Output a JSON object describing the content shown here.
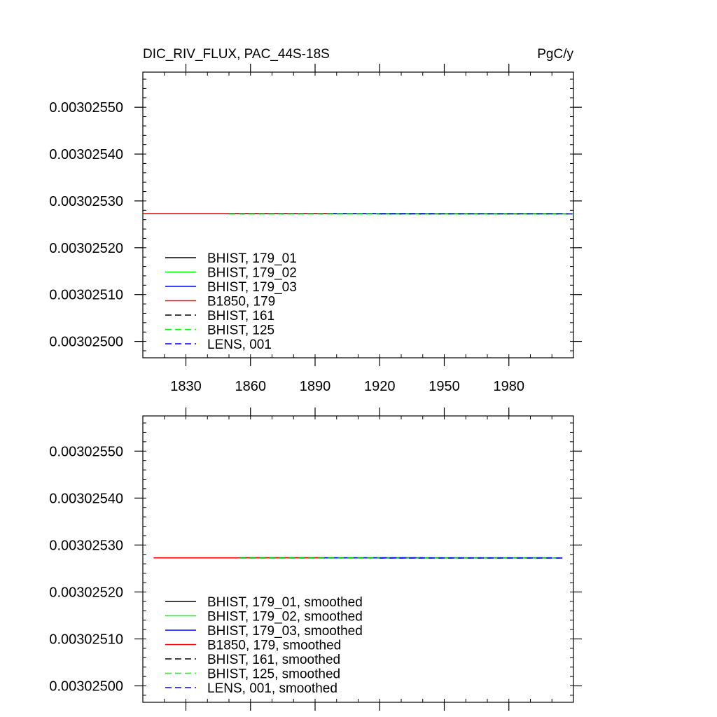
{
  "chart_data": [
    {
      "type": "line",
      "title": "DIC_RIV_FLUX, PAC_44S-18S",
      "units": "PgC/y",
      "xlabel": "",
      "ylabel": "",
      "xlim": [
        1810,
        2010
      ],
      "ylim": [
        0.003024965,
        0.003025575
      ],
      "xticks": [
        "1830",
        "1860",
        "1890",
        "1920",
        "1950",
        "1980"
      ],
      "yticks": [
        "0.00302500",
        "0.00302510",
        "0.00302520",
        "0.00302530",
        "0.00302540",
        "0.00302550"
      ],
      "legend_position": "lower-left",
      "grid": false,
      "series": [
        {
          "name": "BHIST, 179_01",
          "color": "#000000",
          "dash": "solid",
          "x": [
            1850,
            2005
          ],
          "y": [
            0.0030252727,
            0.0030252727
          ]
        },
        {
          "name": "BHIST, 179_02",
          "color": "#00ff00",
          "dash": "solid",
          "x": [
            1850,
            2005
          ],
          "y": [
            0.0030252727,
            0.0030252727
          ]
        },
        {
          "name": "BHIST, 179_03",
          "color": "#0000ff",
          "dash": "solid",
          "x": [
            1850,
            1945
          ],
          "y": [
            0.0030252727,
            0.0030252727
          ]
        },
        {
          "name": "B1850, 179",
          "color": "#ff0000",
          "dash": "solid",
          "x": [
            1810,
            1897
          ],
          "y": [
            0.0030252727,
            0.0030252727
          ]
        },
        {
          "name": "BHIST, 161",
          "color": "#000000",
          "dash": "dashed",
          "x": [
            1850,
            2010
          ],
          "y": [
            0.0030252725,
            0.0030252725
          ]
        },
        {
          "name": "BHIST, 125",
          "color": "#00ff00",
          "dash": "dashed",
          "x": [
            1850,
            2010
          ],
          "y": [
            0.0030252722,
            0.0030252722
          ]
        },
        {
          "name": "LENS, 001",
          "color": "#0000ff",
          "dash": "dashed",
          "x": [
            1920,
            2010
          ],
          "y": [
            0.0030252724,
            0.0030252724
          ]
        }
      ]
    },
    {
      "type": "line",
      "title": "",
      "xlabel": "",
      "ylabel": "",
      "xlim": [
        1810,
        2010
      ],
      "ylim": [
        0.003024965,
        0.003025575
      ],
      "xticks": [],
      "yticks": [
        "0.00302500",
        "0.00302510",
        "0.00302520",
        "0.00302530",
        "0.00302540",
        "0.00302550"
      ],
      "legend_position": "lower-left",
      "grid": false,
      "series": [
        {
          "name": "BHIST, 179_01, smoothed",
          "color": "#000000",
          "dash": "solid",
          "x": [
            1855,
            2000
          ],
          "y": [
            0.0030252727,
            0.0030252727
          ]
        },
        {
          "name": "BHIST, 179_02, smoothed",
          "color": "#00ff00",
          "dash": "solid",
          "x": [
            1855,
            2000
          ],
          "y": [
            0.0030252727,
            0.0030252727
          ]
        },
        {
          "name": "BHIST, 179_03, smoothed",
          "color": "#0000ff",
          "dash": "solid",
          "x": [
            1855,
            1940
          ],
          "y": [
            0.0030252727,
            0.0030252727
          ]
        },
        {
          "name": "B1850, 179, smoothed",
          "color": "#ff0000",
          "dash": "solid",
          "x": [
            1815,
            1893
          ],
          "y": [
            0.0030252727,
            0.0030252727
          ]
        },
        {
          "name": "BHIST, 161, smoothed",
          "color": "#000000",
          "dash": "dashed",
          "x": [
            1855,
            2005
          ],
          "y": [
            0.0030252725,
            0.0030252725
          ]
        },
        {
          "name": "BHIST, 125, smoothed",
          "color": "#00ff00",
          "dash": "dashed",
          "x": [
            1855,
            2005
          ],
          "y": [
            0.0030252722,
            0.0030252722
          ]
        },
        {
          "name": "LENS, 001, smoothed",
          "color": "#0000ff",
          "dash": "dashed",
          "x": [
            1920,
            2005
          ],
          "y": [
            0.0030252724,
            0.0030252724
          ]
        }
      ]
    }
  ]
}
